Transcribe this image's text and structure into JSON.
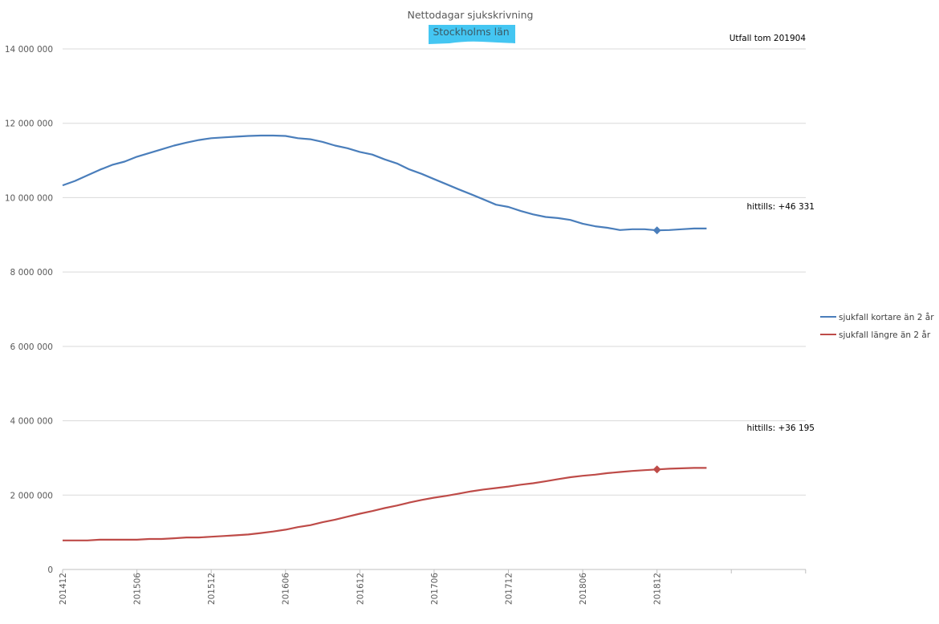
{
  "chart_data": {
    "type": "line",
    "title": "Nettodagar sjukskrivning",
    "subtitle": "Stockholms län",
    "note": "Utfall tom 201904",
    "xlabel": "",
    "ylabel": "",
    "ylim": [
      0,
      14000000
    ],
    "y_ticks": [
      0,
      2000000,
      4000000,
      6000000,
      8000000,
      10000000,
      12000000,
      14000000
    ],
    "y_tick_labels": [
      "0",
      "2 000 000",
      "4 000 000",
      "6 000 000",
      "8 000 000",
      "10 000 000",
      "12 000 000",
      "14 000 000"
    ],
    "x_tick_labels": [
      "201412",
      "201506",
      "201512",
      "201606",
      "201612",
      "201706",
      "201712",
      "201806",
      "201812"
    ],
    "x_start": "201412",
    "x_months": 53,
    "grid": true,
    "legend_position": "right",
    "series": [
      {
        "name": "sjukfall kortare än 2 år",
        "color": "#4a7ebb",
        "marker_index": 48,
        "annotation": "hittills: +46 331",
        "values": [
          10330000,
          10450000,
          10600000,
          10750000,
          10880000,
          10970000,
          11100000,
          11200000,
          11300000,
          11400000,
          11480000,
          11550000,
          11600000,
          11620000,
          11640000,
          11660000,
          11670000,
          11670000,
          11660000,
          11600000,
          11570000,
          11500000,
          11400000,
          11330000,
          11230000,
          11160000,
          11030000,
          10920000,
          10760000,
          10640000,
          10500000,
          10360000,
          10220000,
          10090000,
          9950000,
          9810000,
          9750000,
          9640000,
          9550000,
          9480000,
          9450000,
          9400000,
          9300000,
          9230000,
          9190000,
          9130000,
          9150000,
          9150000,
          9120000,
          9130000,
          9150000,
          9170000,
          9170000
        ]
      },
      {
        "name": "sjukfall längre än 2 år",
        "color": "#be4b48",
        "marker_index": 48,
        "annotation": "hittills: +36 195",
        "values": [
          780000,
          780000,
          780000,
          800000,
          800000,
          800000,
          800000,
          820000,
          820000,
          840000,
          860000,
          860000,
          880000,
          900000,
          920000,
          940000,
          980000,
          1020000,
          1070000,
          1140000,
          1190000,
          1270000,
          1340000,
          1420000,
          1500000,
          1570000,
          1650000,
          1720000,
          1800000,
          1870000,
          1930000,
          1980000,
          2040000,
          2100000,
          2150000,
          2190000,
          2230000,
          2280000,
          2320000,
          2370000,
          2430000,
          2480000,
          2520000,
          2550000,
          2590000,
          2620000,
          2650000,
          2670000,
          2690000,
          2710000,
          2720000,
          2730000,
          2730000
        ]
      }
    ]
  }
}
